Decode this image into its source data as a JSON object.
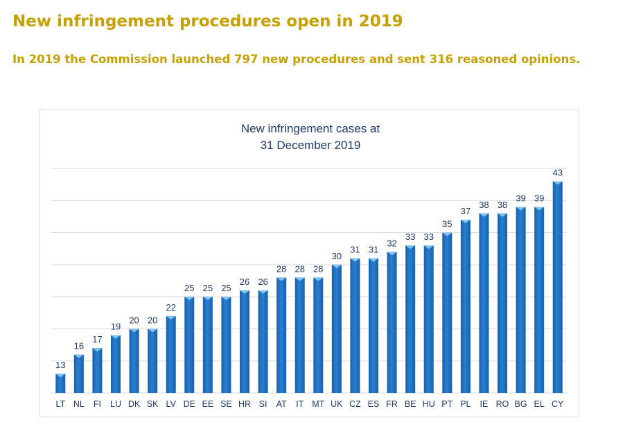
{
  "page": {
    "heading": "New infringement procedures open in 2019",
    "subheading": "In 2019 the Commission launched 797 new procedures and sent 316 reasoned opinions."
  },
  "colors": {
    "heading": "#c5a100",
    "bar": "#1f6fc0",
    "bar_top": "#7fc3f0",
    "gridline": "#d9d9d9",
    "text": "#1f3864"
  },
  "chart_data": {
    "type": "bar",
    "title_lines": [
      "New infringement cases at",
      "31 December 2019"
    ],
    "categories": [
      "LT",
      "NL",
      "FI",
      "LU",
      "DK",
      "SK",
      "LV",
      "DE",
      "EE",
      "SE",
      "HR",
      "SI",
      "AT",
      "IT",
      "MT",
      "UK",
      "CZ",
      "ES",
      "FR",
      "BE",
      "HU",
      "PT",
      "PL",
      "IE",
      "RO",
      "BG",
      "EL",
      "CY"
    ],
    "values": [
      13,
      16,
      17,
      19,
      20,
      20,
      22,
      25,
      25,
      25,
      26,
      26,
      28,
      28,
      28,
      30,
      31,
      31,
      32,
      33,
      33,
      35,
      37,
      38,
      38,
      39,
      39,
      43
    ],
    "ylim": [
      10,
      45
    ],
    "gridlines": [
      15,
      20,
      25,
      30,
      35,
      40,
      45
    ],
    "ytick_labels_visible": false,
    "data_labels": true,
    "legend": "none",
    "grid": true
  }
}
